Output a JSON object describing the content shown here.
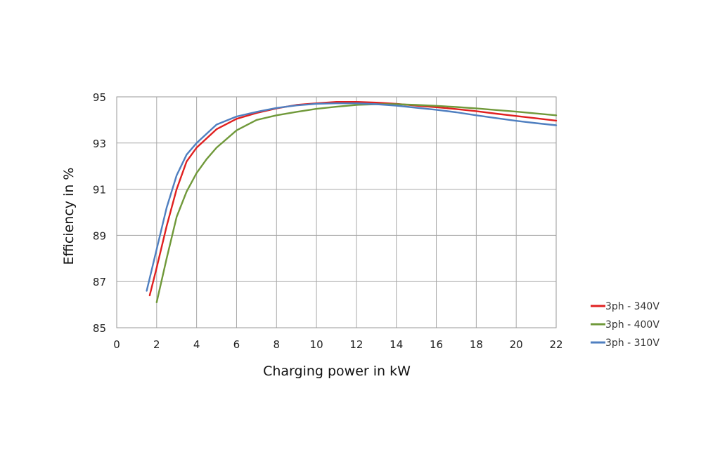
{
  "chart_data": {
    "type": "line",
    "title": "",
    "xlabel": "Charging power  in kW",
    "ylabel": "Efficiency  in %",
    "xlim": [
      0,
      22
    ],
    "ylim": [
      85,
      95
    ],
    "xticks": [
      0,
      2,
      4,
      6,
      8,
      10,
      12,
      14,
      16,
      18,
      20,
      22
    ],
    "yticks": [
      85,
      87,
      89,
      91,
      93,
      95
    ],
    "grid": true,
    "legend_position": "bottom-right",
    "series": [
      {
        "name": "3ph - 340V",
        "color": "#e02020",
        "points": [
          [
            1.65,
            86.4
          ],
          [
            2.0,
            87.6
          ],
          [
            2.5,
            89.4
          ],
          [
            3.0,
            91.0
          ],
          [
            3.5,
            92.2
          ],
          [
            4.0,
            92.8
          ],
          [
            4.5,
            93.2
          ],
          [
            5.0,
            93.6
          ],
          [
            6.0,
            94.05
          ],
          [
            7.0,
            94.3
          ],
          [
            8.0,
            94.5
          ],
          [
            9.0,
            94.65
          ],
          [
            10.0,
            94.72
          ],
          [
            11.0,
            94.78
          ],
          [
            12.0,
            94.78
          ],
          [
            13.0,
            94.75
          ],
          [
            14.0,
            94.7
          ],
          [
            15.0,
            94.62
          ],
          [
            16.0,
            94.55
          ],
          [
            17.0,
            94.47
          ],
          [
            18.0,
            94.38
          ],
          [
            19.0,
            94.27
          ],
          [
            20.0,
            94.17
          ],
          [
            21.0,
            94.07
          ],
          [
            22.0,
            93.97
          ]
        ]
      },
      {
        "name": "3ph - 400V",
        "color": "#70993a",
        "points": [
          [
            2.0,
            86.1
          ],
          [
            2.5,
            88.0
          ],
          [
            3.0,
            89.8
          ],
          [
            3.5,
            90.9
          ],
          [
            4.0,
            91.7
          ],
          [
            4.5,
            92.3
          ],
          [
            5.0,
            92.8
          ],
          [
            6.0,
            93.55
          ],
          [
            7.0,
            94.0
          ],
          [
            8.0,
            94.2
          ],
          [
            9.0,
            94.35
          ],
          [
            10.0,
            94.48
          ],
          [
            11.0,
            94.57
          ],
          [
            12.0,
            94.65
          ],
          [
            13.0,
            94.68
          ],
          [
            14.0,
            94.68
          ],
          [
            15.0,
            94.65
          ],
          [
            16.0,
            94.61
          ],
          [
            17.0,
            94.56
          ],
          [
            18.0,
            94.5
          ],
          [
            19.0,
            94.43
          ],
          [
            20.0,
            94.36
          ],
          [
            21.0,
            94.28
          ],
          [
            22.0,
            94.2
          ]
        ]
      },
      {
        "name": "3ph - 310V",
        "color": "#4f7fc0",
        "points": [
          [
            1.5,
            86.6
          ],
          [
            2.0,
            88.4
          ],
          [
            2.5,
            90.2
          ],
          [
            3.0,
            91.6
          ],
          [
            3.5,
            92.5
          ],
          [
            4.0,
            93.0
          ],
          [
            4.5,
            93.4
          ],
          [
            5.0,
            93.8
          ],
          [
            6.0,
            94.15
          ],
          [
            7.0,
            94.35
          ],
          [
            8.0,
            94.52
          ],
          [
            9.0,
            94.63
          ],
          [
            10.0,
            94.7
          ],
          [
            11.0,
            94.72
          ],
          [
            12.0,
            94.72
          ],
          [
            13.0,
            94.68
          ],
          [
            14.0,
            94.62
          ],
          [
            15.0,
            94.53
          ],
          [
            16.0,
            94.44
          ],
          [
            17.0,
            94.33
          ],
          [
            18.0,
            94.2
          ],
          [
            19.0,
            94.08
          ],
          [
            20.0,
            93.96
          ],
          [
            21.0,
            93.86
          ],
          [
            22.0,
            93.77
          ]
        ]
      }
    ]
  }
}
